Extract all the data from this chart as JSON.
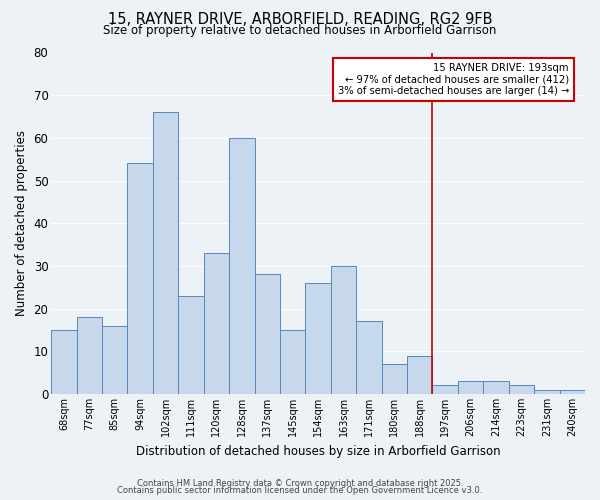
{
  "title1": "15, RAYNER DRIVE, ARBORFIELD, READING, RG2 9FB",
  "title2": "Size of property relative to detached houses in Arborfield Garrison",
  "xlabel": "Distribution of detached houses by size in Arborfield Garrison",
  "ylabel": "Number of detached properties",
  "footer1": "Contains HM Land Registry data © Crown copyright and database right 2025.",
  "footer2": "Contains public sector information licensed under the Open Government Licence v3.0.",
  "bar_labels": [
    "68sqm",
    "77sqm",
    "85sqm",
    "94sqm",
    "102sqm",
    "111sqm",
    "120sqm",
    "128sqm",
    "137sqm",
    "145sqm",
    "154sqm",
    "163sqm",
    "171sqm",
    "180sqm",
    "188sqm",
    "197sqm",
    "206sqm",
    "214sqm",
    "223sqm",
    "231sqm",
    "240sqm"
  ],
  "bar_values": [
    15,
    18,
    16,
    54,
    66,
    23,
    33,
    60,
    28,
    15,
    26,
    30,
    17,
    7,
    9,
    2,
    3,
    3,
    2,
    1,
    1
  ],
  "bar_color": "#c8d8ec",
  "bar_edge_color": "#5588bb",
  "vline_x": 14.5,
  "vline_color": "#cc0000",
  "ylim": [
    0,
    80
  ],
  "yticks": [
    0,
    10,
    20,
    30,
    40,
    50,
    60,
    70,
    80
  ],
  "annotation_title": "15 RAYNER DRIVE: 193sqm",
  "annotation_line1": "← 97% of detached houses are smaller (412)",
  "annotation_line2": "3% of semi-detached houses are larger (14) →",
  "annotation_box_color": "#ffffff",
  "annotation_box_edge": "#cc0000",
  "bg_color": "#edf2f7",
  "grid_color": "#ffffff"
}
